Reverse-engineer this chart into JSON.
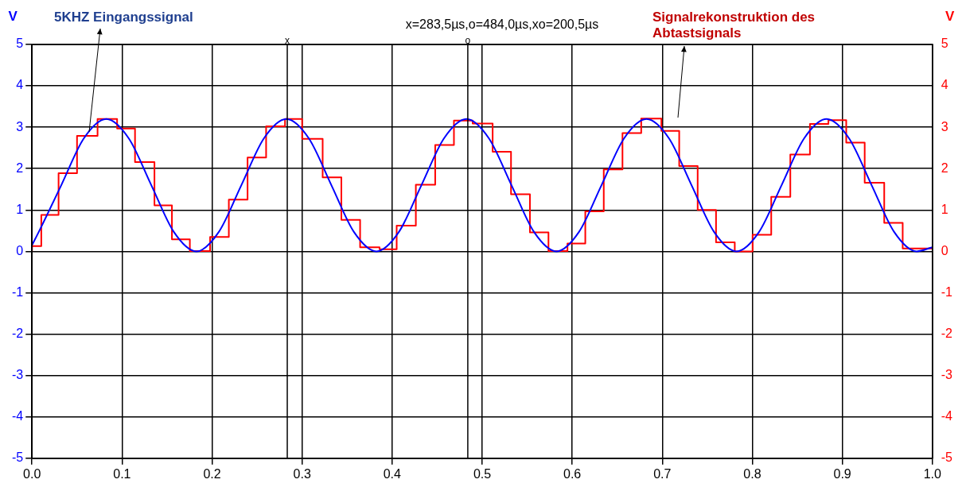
{
  "chart_data": {
    "type": "line",
    "xlim": [
      0,
      1
    ],
    "xticks": [
      {
        "value": 0,
        "label": "0.0"
      },
      {
        "value": 0.1,
        "label": "0.1"
      },
      {
        "value": 0.2,
        "label": "0.2"
      },
      {
        "value": 0.3,
        "label": "0.3"
      },
      {
        "value": 0.4,
        "label": "0.4"
      },
      {
        "value": 0.5,
        "label": "0.5"
      },
      {
        "value": 0.6,
        "label": "0.6"
      },
      {
        "value": 0.7,
        "label": "0.7"
      },
      {
        "value": 0.8,
        "label": "0.8"
      },
      {
        "value": 0.9,
        "label": "0.9"
      },
      {
        "value": 1,
        "label": "1.0"
      }
    ],
    "ylabel": "V",
    "y2label": "V",
    "ylim": [
      -5,
      5
    ],
    "yticks": [
      -5,
      -4,
      -3,
      -2,
      -1,
      0,
      1,
      2,
      3,
      4,
      5
    ],
    "y2lim": [
      -5,
      5
    ],
    "y2ticks": [
      -5,
      -4,
      -3,
      -2,
      -1,
      0,
      1,
      2,
      3,
      4,
      5
    ],
    "grid": true,
    "legend": false,
    "marker": "none",
    "line_style": "solid",
    "series": [
      {
        "color": "#0000ff",
        "x": [
          0,
          0.0075,
          0.0325,
          0.0575,
          0.0825,
          0.1075,
          0.1325,
          0.1575,
          0.1825,
          0.2075,
          0.2325,
          0.2575,
          0.2825,
          0.3075,
          0.3325,
          0.3575,
          0.3825,
          0.4075,
          0.4325,
          0.4575,
          0.4825,
          0.5075,
          0.5325,
          0.5575,
          0.5825,
          0.6075,
          0.6325,
          0.6575,
          0.6825,
          0.7075,
          0.7325,
          0.7575,
          0.7825,
          0.8075,
          0.8325,
          0.8575,
          0.8825,
          0.9075,
          0.9325,
          0.9575,
          0.9825,
          1.0
        ],
        "values": [
          0.15,
          0.47,
          1.6,
          2.73,
          3.2,
          2.73,
          1.6,
          0.47,
          0,
          0.47,
          1.6,
          2.73,
          3.2,
          2.73,
          1.6,
          0.47,
          0,
          0.47,
          1.6,
          2.73,
          3.2,
          2.73,
          1.6,
          0.47,
          0,
          0.47,
          1.6,
          2.73,
          3.2,
          2.73,
          1.6,
          0.47,
          0,
          0.47,
          1.6,
          2.73,
          3.2,
          2.73,
          1.6,
          0.47,
          0,
          0.1
        ]
      },
      {
        "type": "step",
        "axis": "y2",
        "color": "#ff0000",
        "x": [
          0,
          0.0103,
          0.0295,
          0.05,
          0.0728,
          0.0945,
          0.1144,
          0.136,
          0.1554,
          0.1753,
          0.1978,
          0.2186,
          0.2394,
          0.26,
          0.281,
          0.3,
          0.3228,
          0.3436,
          0.3644,
          0.386,
          0.405,
          0.4263,
          0.4478,
          0.4686,
          0.4894,
          0.5116,
          0.532,
          0.553,
          0.5736,
          0.5947,
          0.6145,
          0.635,
          0.6558,
          0.6766,
          0.699,
          0.7188,
          0.7393,
          0.7597,
          0.7805,
          0.8003,
          0.821,
          0.8422,
          0.864,
          0.8845,
          0.9043,
          0.9248,
          0.9465,
          0.967,
          0.9868,
          1.0
        ],
        "values": [
          0,
          0.13,
          0.88,
          1.89,
          2.79,
          3.2,
          2.97,
          2.16,
          1.11,
          0.29,
          0.01,
          0.35,
          1.25,
          2.27,
          3.02,
          3.2,
          2.72,
          1.79,
          0.76,
          0.1,
          0.05,
          0.62,
          1.61,
          2.57,
          3.16,
          3.09,
          2.41,
          1.38,
          0.46,
          0.01,
          0.19,
          0.97,
          1.98,
          2.86,
          3.21,
          2.91,
          2.06,
          1.0,
          0.22,
          0,
          0.4,
          1.32,
          2.34,
          3.08,
          3.17,
          2.63,
          1.66,
          0.69,
          0.07,
          0.07
        ]
      }
    ],
    "ref_lines": [
      {
        "axis": "x",
        "value": 0.2835,
        "label": "x",
        "color": "#000000"
      },
      {
        "axis": "x",
        "value": 0.484,
        "label": "o",
        "color": "#000000"
      }
    ],
    "annotations": [
      "5KHZ Eingangssignal",
      "x=283,5µs,o=484,0µs,xo=200,5µs",
      "Signalrekonstruktion des Abtastsignals"
    ]
  }
}
